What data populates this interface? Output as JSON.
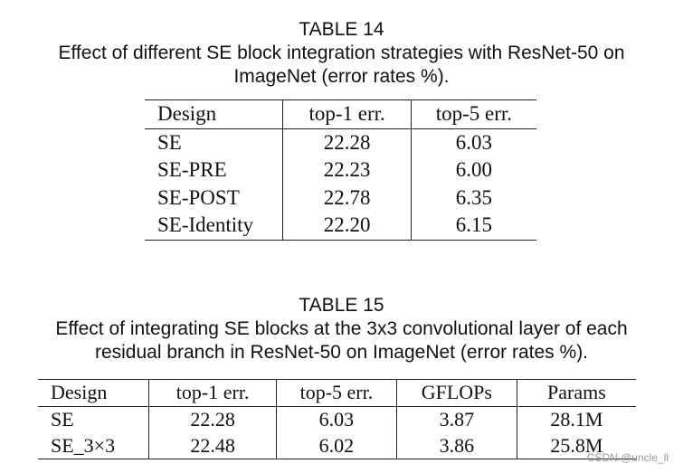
{
  "table14": {
    "label": "TABLE 14",
    "caption_line1": "Effect of different SE block integration strategies with ResNet-50 on",
    "caption_line2": "ImageNet (error rates %).",
    "headers": [
      "Design",
      "top-1 err.",
      "top-5 err."
    ],
    "rows": [
      [
        "SE",
        "22.28",
        "6.03"
      ],
      [
        "SE-PRE",
        "22.23",
        "6.00"
      ],
      [
        "SE-POST",
        "22.78",
        "6.35"
      ],
      [
        "SE-Identity",
        "22.20",
        "6.15"
      ]
    ]
  },
  "table15": {
    "label": "TABLE 15",
    "caption_line1": "Effect of integrating SE blocks at the 3x3 convolutional layer of each",
    "caption_line2": "residual branch in ResNet-50 on ImageNet (error rates %).",
    "headers": [
      "Design",
      "top-1 err.",
      "top-5 err.",
      "GFLOPs",
      "Params"
    ],
    "rows": [
      [
        "SE",
        "22.28",
        "6.03",
        "3.87",
        "28.1M"
      ],
      [
        "SE_3×3",
        "22.48",
        "6.02",
        "3.86",
        "25.8M"
      ]
    ]
  },
  "watermark": "CSDN @uncle_ll"
}
